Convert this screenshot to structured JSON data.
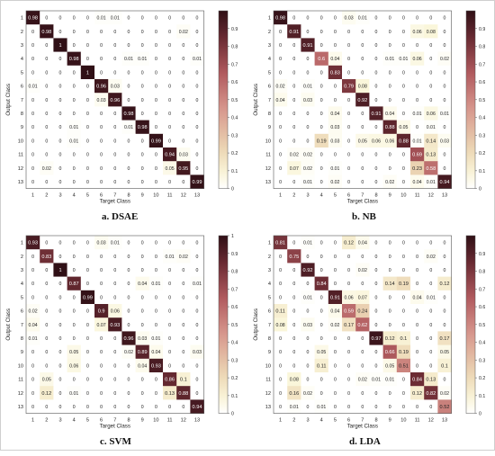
{
  "figure": {
    "panels": [
      {
        "caption": "a.   DSAE"
      },
      {
        "caption": "b.   NB"
      },
      {
        "caption": "c.   SVM"
      },
      {
        "caption": "d.   LDA"
      }
    ]
  },
  "chart_data": [
    {
      "type": "heatmap",
      "title": "a.   DSAE",
      "xlabel": "Target Class",
      "ylabel": "Output Class",
      "categories": [
        "1",
        "2",
        "3",
        "4",
        "5",
        "6",
        "7",
        "8",
        "9",
        "10",
        "11",
        "12",
        "13"
      ],
      "colorbar_ticks": [
        "0",
        "0.1",
        "0.2",
        "0.3",
        "0.4",
        "0.5",
        "0.6",
        "0.7",
        "0.8",
        "0.9"
      ],
      "color_range": [
        0,
        1
      ],
      "values": [
        [
          "0.98",
          "0",
          "0",
          "0",
          "0",
          "0.01",
          "0.01",
          "0",
          "0",
          "0",
          "0",
          "0",
          "0"
        ],
        [
          "0",
          "0.98",
          "0",
          "0",
          "0",
          "0",
          "0",
          "0",
          "0",
          "0",
          "0",
          "0.02",
          "0"
        ],
        [
          "0",
          "0",
          "1",
          "0",
          "0",
          "0",
          "0",
          "0",
          "0",
          "0",
          "0",
          "0",
          "0"
        ],
        [
          "0",
          "0",
          "0",
          "0.98",
          "0",
          "0",
          "0",
          "0.01",
          "0.01",
          "0",
          "0",
          "0",
          "0.01"
        ],
        [
          "0",
          "0",
          "0",
          "0",
          "1",
          "0",
          "0",
          "0",
          "0",
          "0",
          "0",
          "0",
          "0"
        ],
        [
          "0.01",
          "0",
          "0",
          "0",
          "0",
          "0.96",
          "0.03",
          "0",
          "0",
          "0",
          "0",
          "0",
          "0"
        ],
        [
          "0",
          "0",
          "0",
          "0",
          "0",
          "0.03",
          "0.96",
          "0",
          "0",
          "0",
          "0",
          "0",
          "0"
        ],
        [
          "0",
          "0",
          "0",
          "0",
          "0",
          "0",
          "0",
          "0.98",
          "0",
          "0",
          "0",
          "0",
          "0"
        ],
        [
          "0",
          "0",
          "0",
          "0.01",
          "0",
          "0",
          "0",
          "0.01",
          "0.98",
          "0",
          "0",
          "0",
          "0"
        ],
        [
          "0",
          "0",
          "0",
          "0.01",
          "0",
          "0",
          "0",
          "0",
          "0",
          "0.99",
          "0",
          "0",
          "0"
        ],
        [
          "0",
          "0",
          "0",
          "0",
          "0",
          "0",
          "0",
          "0",
          "0",
          "0",
          "0.94",
          "0.03",
          "0"
        ],
        [
          "0",
          "0.02",
          "0",
          "0",
          "0",
          "0",
          "0",
          "0",
          "0",
          "0",
          "0.05",
          "0.95",
          "0"
        ],
        [
          "0",
          "0",
          "0",
          "0",
          "0",
          "0",
          "0",
          "0",
          "0",
          "0",
          "0",
          "0",
          "0.99"
        ]
      ]
    },
    {
      "type": "heatmap",
      "title": "b.   NB",
      "xlabel": "Target Class",
      "ylabel": "Output Class",
      "categories": [
        "1",
        "2",
        "3",
        "4",
        "5",
        "6",
        "7",
        "8",
        "9",
        "10",
        "11",
        "12",
        "13"
      ],
      "colorbar_ticks": [
        "0",
        "0.1",
        "0.2",
        "0.3",
        "0.4",
        "0.5",
        "0.6",
        "0.7",
        "0.8",
        "0.9"
      ],
      "color_range": [
        0,
        1
      ],
      "values": [
        [
          "0.98",
          "0",
          "0",
          "0",
          "0",
          "0.03",
          "0.01",
          "0",
          "0",
          "0",
          "0",
          "0",
          "0"
        ],
        [
          "0",
          "0.91",
          "0",
          "0",
          "0",
          "0",
          "0",
          "0",
          "0",
          "0",
          "0.06",
          "0.08",
          "0"
        ],
        [
          "0",
          "0",
          "0.91",
          "0",
          "0",
          "0",
          "0",
          "0",
          "0",
          "0",
          "0",
          "0",
          "0"
        ],
        [
          "0",
          "0",
          "0",
          "0.6",
          "0.04",
          "0",
          "0",
          "0",
          "0.01",
          "0.01",
          "0.06",
          "0",
          "0.02"
        ],
        [
          "0",
          "0",
          "0",
          "0",
          "0.83",
          "0",
          "0",
          "0",
          "0",
          "0",
          "0",
          "0",
          "0"
        ],
        [
          "0.02",
          "0",
          "0.01",
          "0",
          "0",
          "0.79",
          "0.08",
          "0",
          "0",
          "0",
          "0",
          "0",
          "0"
        ],
        [
          "0.04",
          "0",
          "0.03",
          "0",
          "0",
          "0",
          "0.92",
          "0",
          "0",
          "0",
          "0",
          "0",
          "0"
        ],
        [
          "0",
          "0",
          "0",
          "0",
          "0.04",
          "0",
          "0",
          "0.91",
          "0.04",
          "0",
          "0.01",
          "0.06",
          "0.01"
        ],
        [
          "0",
          "0",
          "0",
          "0",
          "0.03",
          "0",
          "0",
          "0",
          "0.88",
          "0.05",
          "0",
          "0.01",
          "0"
        ],
        [
          "0",
          "0",
          "0",
          "0.19",
          "0.03",
          "0",
          "0.05",
          "0.06",
          "0.06",
          "0.88",
          "0.01",
          "0.14",
          "0.03"
        ],
        [
          "0",
          "0.02",
          "0.02",
          "0",
          "0",
          "0",
          "0",
          "0",
          "0",
          "0",
          "0.69",
          "0.13",
          "0"
        ],
        [
          "0",
          "0.07",
          "0.02",
          "0",
          "0.01",
          "0",
          "0",
          "0",
          "0",
          "0",
          "0.23",
          "0.58",
          "0"
        ],
        [
          "0",
          "0",
          "0.01",
          "0",
          "0.02",
          "0",
          "0",
          "0",
          "0.02",
          "0",
          "0.04",
          "0.01",
          "0.94"
        ]
      ]
    },
    {
      "type": "heatmap",
      "title": "c.   SVM",
      "xlabel": "Target Class",
      "ylabel": "Output Class",
      "categories": [
        "1",
        "2",
        "3",
        "4",
        "5",
        "6",
        "7",
        "8",
        "9",
        "10",
        "11",
        "12",
        "13"
      ],
      "colorbar_ticks": [
        "0",
        "0.1",
        "0.2",
        "0.3",
        "0.4",
        "0.5",
        "0.6",
        "0.7",
        "0.8",
        "0.9",
        "1"
      ],
      "color_range": [
        0,
        1
      ],
      "values": [
        [
          "0.93",
          "0",
          "0",
          "0",
          "0",
          "0.03",
          "0.01",
          "0",
          "0",
          "0",
          "0",
          "0",
          "0"
        ],
        [
          "0",
          "0.83",
          "0",
          "0",
          "0",
          "0",
          "0",
          "0",
          "0",
          "0",
          "0.01",
          "0.02",
          "0"
        ],
        [
          "0",
          "0",
          "1",
          "0",
          "0",
          "0",
          "0",
          "0",
          "0",
          "0",
          "0",
          "0",
          "0"
        ],
        [
          "0",
          "0",
          "0",
          "0.87",
          "0",
          "0",
          "0",
          "0",
          "0.04",
          "0.01",
          "0",
          "0",
          "0.01"
        ],
        [
          "0",
          "0",
          "0",
          "0",
          "0.99",
          "0",
          "0",
          "0",
          "0",
          "0",
          "0",
          "0",
          "0"
        ],
        [
          "0.02",
          "0",
          "0",
          "0",
          "0",
          "0.9",
          "0.06",
          "0",
          "0",
          "0",
          "0",
          "0",
          "0"
        ],
        [
          "0.04",
          "0",
          "0",
          "0",
          "0",
          "0.07",
          "0.93",
          "0",
          "0",
          "0",
          "0",
          "0",
          "0"
        ],
        [
          "0.01",
          "0",
          "0",
          "0",
          "0",
          "0",
          "0",
          "0.96",
          "0.03",
          "0.01",
          "0",
          "0",
          "0"
        ],
        [
          "0",
          "0",
          "0",
          "0.05",
          "0",
          "0",
          "0",
          "0.02",
          "0.89",
          "0.04",
          "0",
          "0",
          "0.03"
        ],
        [
          "0",
          "0",
          "0",
          "0.06",
          "0",
          "0",
          "0",
          "0",
          "0.04",
          "0.93",
          "0",
          "0",
          "0"
        ],
        [
          "0",
          "0.05",
          "0",
          "0",
          "0",
          "0",
          "0",
          "0",
          "0",
          "0",
          "0.86",
          "0.1",
          "0"
        ],
        [
          "0",
          "0.12",
          "0",
          "0.01",
          "0",
          "0",
          "0",
          "0",
          "0",
          "0",
          "0.13",
          "0.88",
          "0"
        ],
        [
          "0",
          "0",
          "0",
          "0",
          "0",
          "0",
          "0",
          "0",
          "0",
          "0",
          "0",
          "0",
          "0.94"
        ]
      ]
    },
    {
      "type": "heatmap",
      "title": "d.   LDA",
      "xlabel": "Target Class",
      "ylabel": "Output Class",
      "categories": [
        "1",
        "2",
        "3",
        "4",
        "5",
        "6",
        "7",
        "8",
        "9",
        "10",
        "11",
        "12",
        "13"
      ],
      "colorbar_ticks": [
        "0",
        "0.1",
        "0.2",
        "0.3",
        "0.4",
        "0.5",
        "0.6",
        "0.7",
        "0.8",
        "0.9"
      ],
      "color_range": [
        0,
        1
      ],
      "values": [
        [
          "0.81",
          "0",
          "0.01",
          "0",
          "0",
          "0.12",
          "0.04",
          "0",
          "0",
          "0",
          "0",
          "0",
          "0"
        ],
        [
          "0",
          "0.75",
          "0",
          "0",
          "0",
          "0",
          "0",
          "0",
          "0",
          "0",
          "0",
          "0.02",
          "0"
        ],
        [
          "0",
          "0",
          "0.92",
          "0",
          "0",
          "0",
          "0.02",
          "0",
          "0",
          "0",
          "0",
          "0",
          "0"
        ],
        [
          "0",
          "0",
          "0",
          "0.84",
          "0",
          "0",
          "0",
          "0",
          "0.14",
          "0.19",
          "0",
          "0",
          "0.12"
        ],
        [
          "0",
          "0",
          "0.01",
          "0",
          "0.91",
          "0.06",
          "0.07",
          "0",
          "0",
          "0",
          "0.04",
          "0.01",
          "0"
        ],
        [
          "0.11",
          "0",
          "0",
          "0",
          "0.04",
          "0.59",
          "0.24",
          "0",
          "0",
          "0",
          "0",
          "0",
          "0"
        ],
        [
          "0.08",
          "0",
          "0.03",
          "0",
          "0.02",
          "0.17",
          "0.62",
          "0",
          "0",
          "0",
          "0",
          "0",
          "0"
        ],
        [
          "0",
          "0",
          "0",
          "0",
          "0",
          "0",
          "0",
          "0.97",
          "0.12",
          "0.1",
          "0",
          "0",
          "0.17"
        ],
        [
          "0",
          "0",
          "0",
          "0.05",
          "0",
          "0",
          "0",
          "0",
          "0.66",
          "0.19",
          "0",
          "0",
          "0.05"
        ],
        [
          "0",
          "0",
          "0",
          "0.11",
          "0",
          "0",
          "0",
          "0",
          "0.05",
          "0.51",
          "0",
          "0",
          "0.1"
        ],
        [
          "0",
          "0.08",
          "0",
          "0",
          "0",
          "0",
          "0.02",
          "0.01",
          "0.01",
          "0",
          "0.84",
          "0.13",
          "0"
        ],
        [
          "0",
          "0.16",
          "0.02",
          "0",
          "0",
          "0",
          "0",
          "0",
          "0",
          "0",
          "0.12",
          "0.82",
          "0.02"
        ],
        [
          "0",
          "0.01",
          "0",
          "0.01",
          "0",
          "0",
          "0",
          "0",
          "0",
          "0",
          "0",
          "0",
          "0.52"
        ]
      ]
    }
  ]
}
